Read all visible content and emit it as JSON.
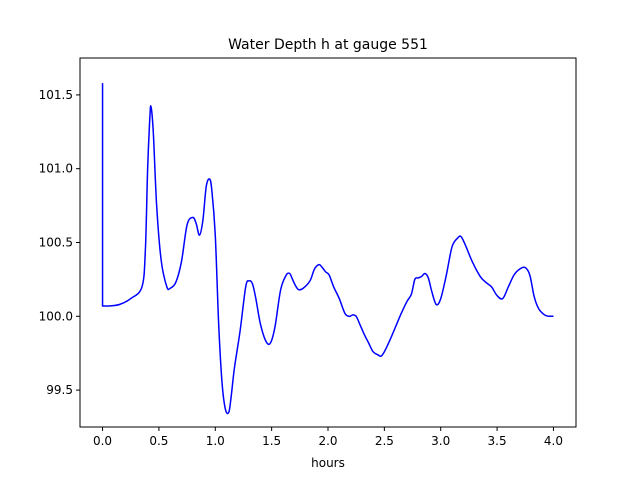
{
  "chart_data": {
    "type": "line",
    "title": "Water Depth h at gauge 551",
    "xlabel": "hours",
    "ylabel": "",
    "xlim": [
      -0.2,
      4.2
    ],
    "ylim": [
      99.25,
      101.75
    ],
    "xticks": [
      0.0,
      0.5,
      1.0,
      1.5,
      2.0,
      2.5,
      3.0,
      3.5,
      4.0
    ],
    "xtick_labels": [
      "0.0",
      "0.5",
      "1.0",
      "1.5",
      "2.0",
      "2.5",
      "3.0",
      "3.5",
      "4.0"
    ],
    "yticks": [
      99.5,
      100.0,
      100.5,
      101.0,
      101.5
    ],
    "ytick_labels": [
      "99.5",
      "100.0",
      "100.5",
      "101.0",
      "101.5"
    ],
    "grid": false,
    "line_color": "#0000ff",
    "series": [
      {
        "x": [
          0.0,
          0.0,
          0.05,
          0.15,
          0.25,
          0.35,
          0.38,
          0.4,
          0.42,
          0.43,
          0.45,
          0.48,
          0.52,
          0.57,
          0.6,
          0.65,
          0.7,
          0.75,
          0.8,
          0.83,
          0.86,
          0.89,
          0.92,
          0.95,
          0.97,
          1.0,
          1.03,
          1.06,
          1.09,
          1.12,
          1.14,
          1.17,
          1.22,
          1.27,
          1.3,
          1.33,
          1.36,
          1.4,
          1.45,
          1.49,
          1.53,
          1.58,
          1.63,
          1.66,
          1.68,
          1.71,
          1.74,
          1.78,
          1.84,
          1.88,
          1.92,
          1.95,
          1.98,
          2.01,
          2.05,
          2.1,
          2.15,
          2.19,
          2.22,
          2.25,
          2.28,
          2.32,
          2.36,
          2.4,
          2.44,
          2.47,
          2.5,
          2.55,
          2.6,
          2.65,
          2.7,
          2.74,
          2.77,
          2.8,
          2.83,
          2.86,
          2.89,
          2.92,
          2.96,
          3.0,
          3.05,
          3.1,
          3.15,
          3.18,
          3.22,
          3.28,
          3.35,
          3.4,
          3.45,
          3.5,
          3.55,
          3.6,
          3.65,
          3.7,
          3.75,
          3.79,
          3.83,
          3.87,
          3.92,
          3.96,
          4.0
        ],
        "y": [
          101.58,
          100.07,
          100.07,
          100.08,
          100.12,
          100.2,
          100.45,
          101.0,
          101.35,
          101.42,
          101.25,
          100.75,
          100.38,
          100.2,
          100.19,
          100.23,
          100.37,
          100.62,
          100.67,
          100.63,
          100.55,
          100.65,
          100.88,
          100.93,
          100.85,
          100.55,
          99.95,
          99.55,
          99.37,
          99.35,
          99.45,
          99.65,
          99.9,
          100.2,
          100.24,
          100.22,
          100.12,
          99.95,
          99.83,
          99.82,
          99.93,
          100.18,
          100.28,
          100.29,
          100.26,
          100.21,
          100.18,
          100.19,
          100.24,
          100.32,
          100.35,
          100.33,
          100.3,
          100.28,
          100.2,
          100.12,
          100.02,
          100.0,
          100.01,
          100.0,
          99.95,
          99.88,
          99.82,
          99.76,
          99.74,
          99.73,
          99.76,
          99.84,
          99.93,
          100.02,
          100.1,
          100.15,
          100.25,
          100.26,
          100.27,
          100.29,
          100.26,
          100.17,
          100.08,
          100.12,
          100.28,
          100.47,
          100.53,
          100.54,
          100.48,
          100.37,
          100.27,
          100.23,
          100.2,
          100.14,
          100.12,
          100.2,
          100.28,
          100.32,
          100.33,
          100.28,
          100.13,
          100.05,
          100.01,
          100.0,
          100.0
        ]
      }
    ]
  }
}
